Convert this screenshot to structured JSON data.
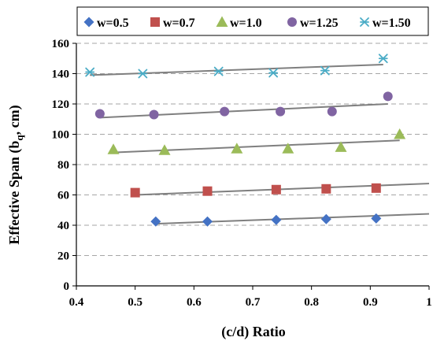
{
  "chart_data": {
    "type": "scatter",
    "title": "",
    "xlabel": "(c/d) Ratio",
    "ylabel_main": "Effective Span (b",
    "ylabel_sub": "q",
    "ylabel_tail": ", cm)",
    "xlim": [
      0.4,
      1.0
    ],
    "ylim": [
      0,
      160
    ],
    "xticks": [
      0.4,
      0.5,
      0.6,
      0.7,
      0.8,
      0.9,
      1.0
    ],
    "xtick_labels": [
      "0.4",
      "0.5",
      "0.6",
      "0.7",
      "0.8",
      "0.9",
      "1"
    ],
    "yticks": [
      0,
      20,
      40,
      60,
      80,
      100,
      120,
      140,
      160
    ],
    "ytick_labels": [
      "0",
      "20",
      "40",
      "60",
      "80",
      "100",
      "120",
      "140",
      "160"
    ],
    "grid": "horizontal dashed",
    "legend_position": "top",
    "trendline_color": "#7f7f7f",
    "series": [
      {
        "name": "w=0.5",
        "marker": "diamond",
        "color": "#4472c4",
        "x": [
          0.535,
          0.623,
          0.74,
          0.825,
          0.91
        ],
        "y": [
          42.5,
          42.5,
          43.5,
          44,
          44.5
        ],
        "trendline": {
          "x": [
            0.535,
            1.0
          ],
          "y": [
            41,
            47.5
          ]
        }
      },
      {
        "name": "w=0.7",
        "marker": "square",
        "color": "#c0504d",
        "x": [
          0.5,
          0.623,
          0.74,
          0.825,
          0.91
        ],
        "y": [
          61.5,
          62.5,
          63.5,
          64,
          64.5
        ],
        "trendline": {
          "x": [
            0.5,
            1.0
          ],
          "y": [
            60,
            67.5
          ]
        }
      },
      {
        "name": "w=1.0",
        "marker": "triangle",
        "color": "#9bbb59",
        "x": [
          0.463,
          0.55,
          0.673,
          0.76,
          0.85,
          0.95
        ],
        "y": [
          90,
          89.5,
          90.5,
          90.5,
          91.5,
          100
        ],
        "trendline": {
          "x": [
            0.463,
            0.95
          ],
          "y": [
            88,
            96
          ]
        }
      },
      {
        "name": "w=1.25",
        "marker": "circle",
        "color": "#8064a2",
        "x": [
          0.44,
          0.532,
          0.652,
          0.747,
          0.835,
          0.93
        ],
        "y": [
          113.5,
          113,
          115,
          115,
          115,
          125
        ],
        "trendline": {
          "x": [
            0.44,
            0.93
          ],
          "y": [
            111,
            120
          ]
        }
      },
      {
        "name": "w=1.50",
        "marker": "asterisk",
        "color": "#4bacc6",
        "x": [
          0.423,
          0.513,
          0.642,
          0.735,
          0.823,
          0.922
        ],
        "y": [
          141,
          140,
          141.5,
          140.5,
          142,
          150
        ],
        "trendline": {
          "x": [
            0.423,
            0.922
          ],
          "y": [
            139,
            146
          ]
        }
      }
    ]
  }
}
